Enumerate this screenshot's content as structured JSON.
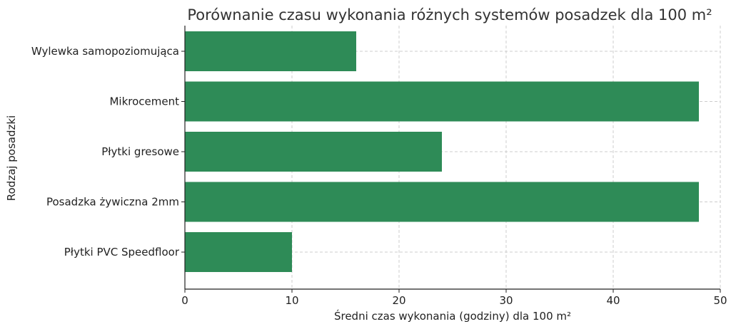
{
  "chart_data": {
    "type": "bar",
    "orientation": "horizontal",
    "title": "Porównanie czasu wykonania różnych systemów posadzek dla 100 m²",
    "xlabel": "Średni czas wykonania (godziny) dla 100 m²",
    "ylabel": "Rodzaj posadzki",
    "categories": [
      "Wylewka samopoziomująca",
      "Mikrocement",
      "Płytki gresowe",
      "Posadzka żywiczna 2mm",
      "Płytki PVC Speedfloor"
    ],
    "values": [
      16,
      48,
      24,
      48,
      10
    ],
    "xlim": [
      0,
      50
    ],
    "xticks": [
      "0",
      "10",
      "20",
      "30",
      "40",
      "50"
    ],
    "grid": true,
    "bar_color": "#2e8b57"
  }
}
